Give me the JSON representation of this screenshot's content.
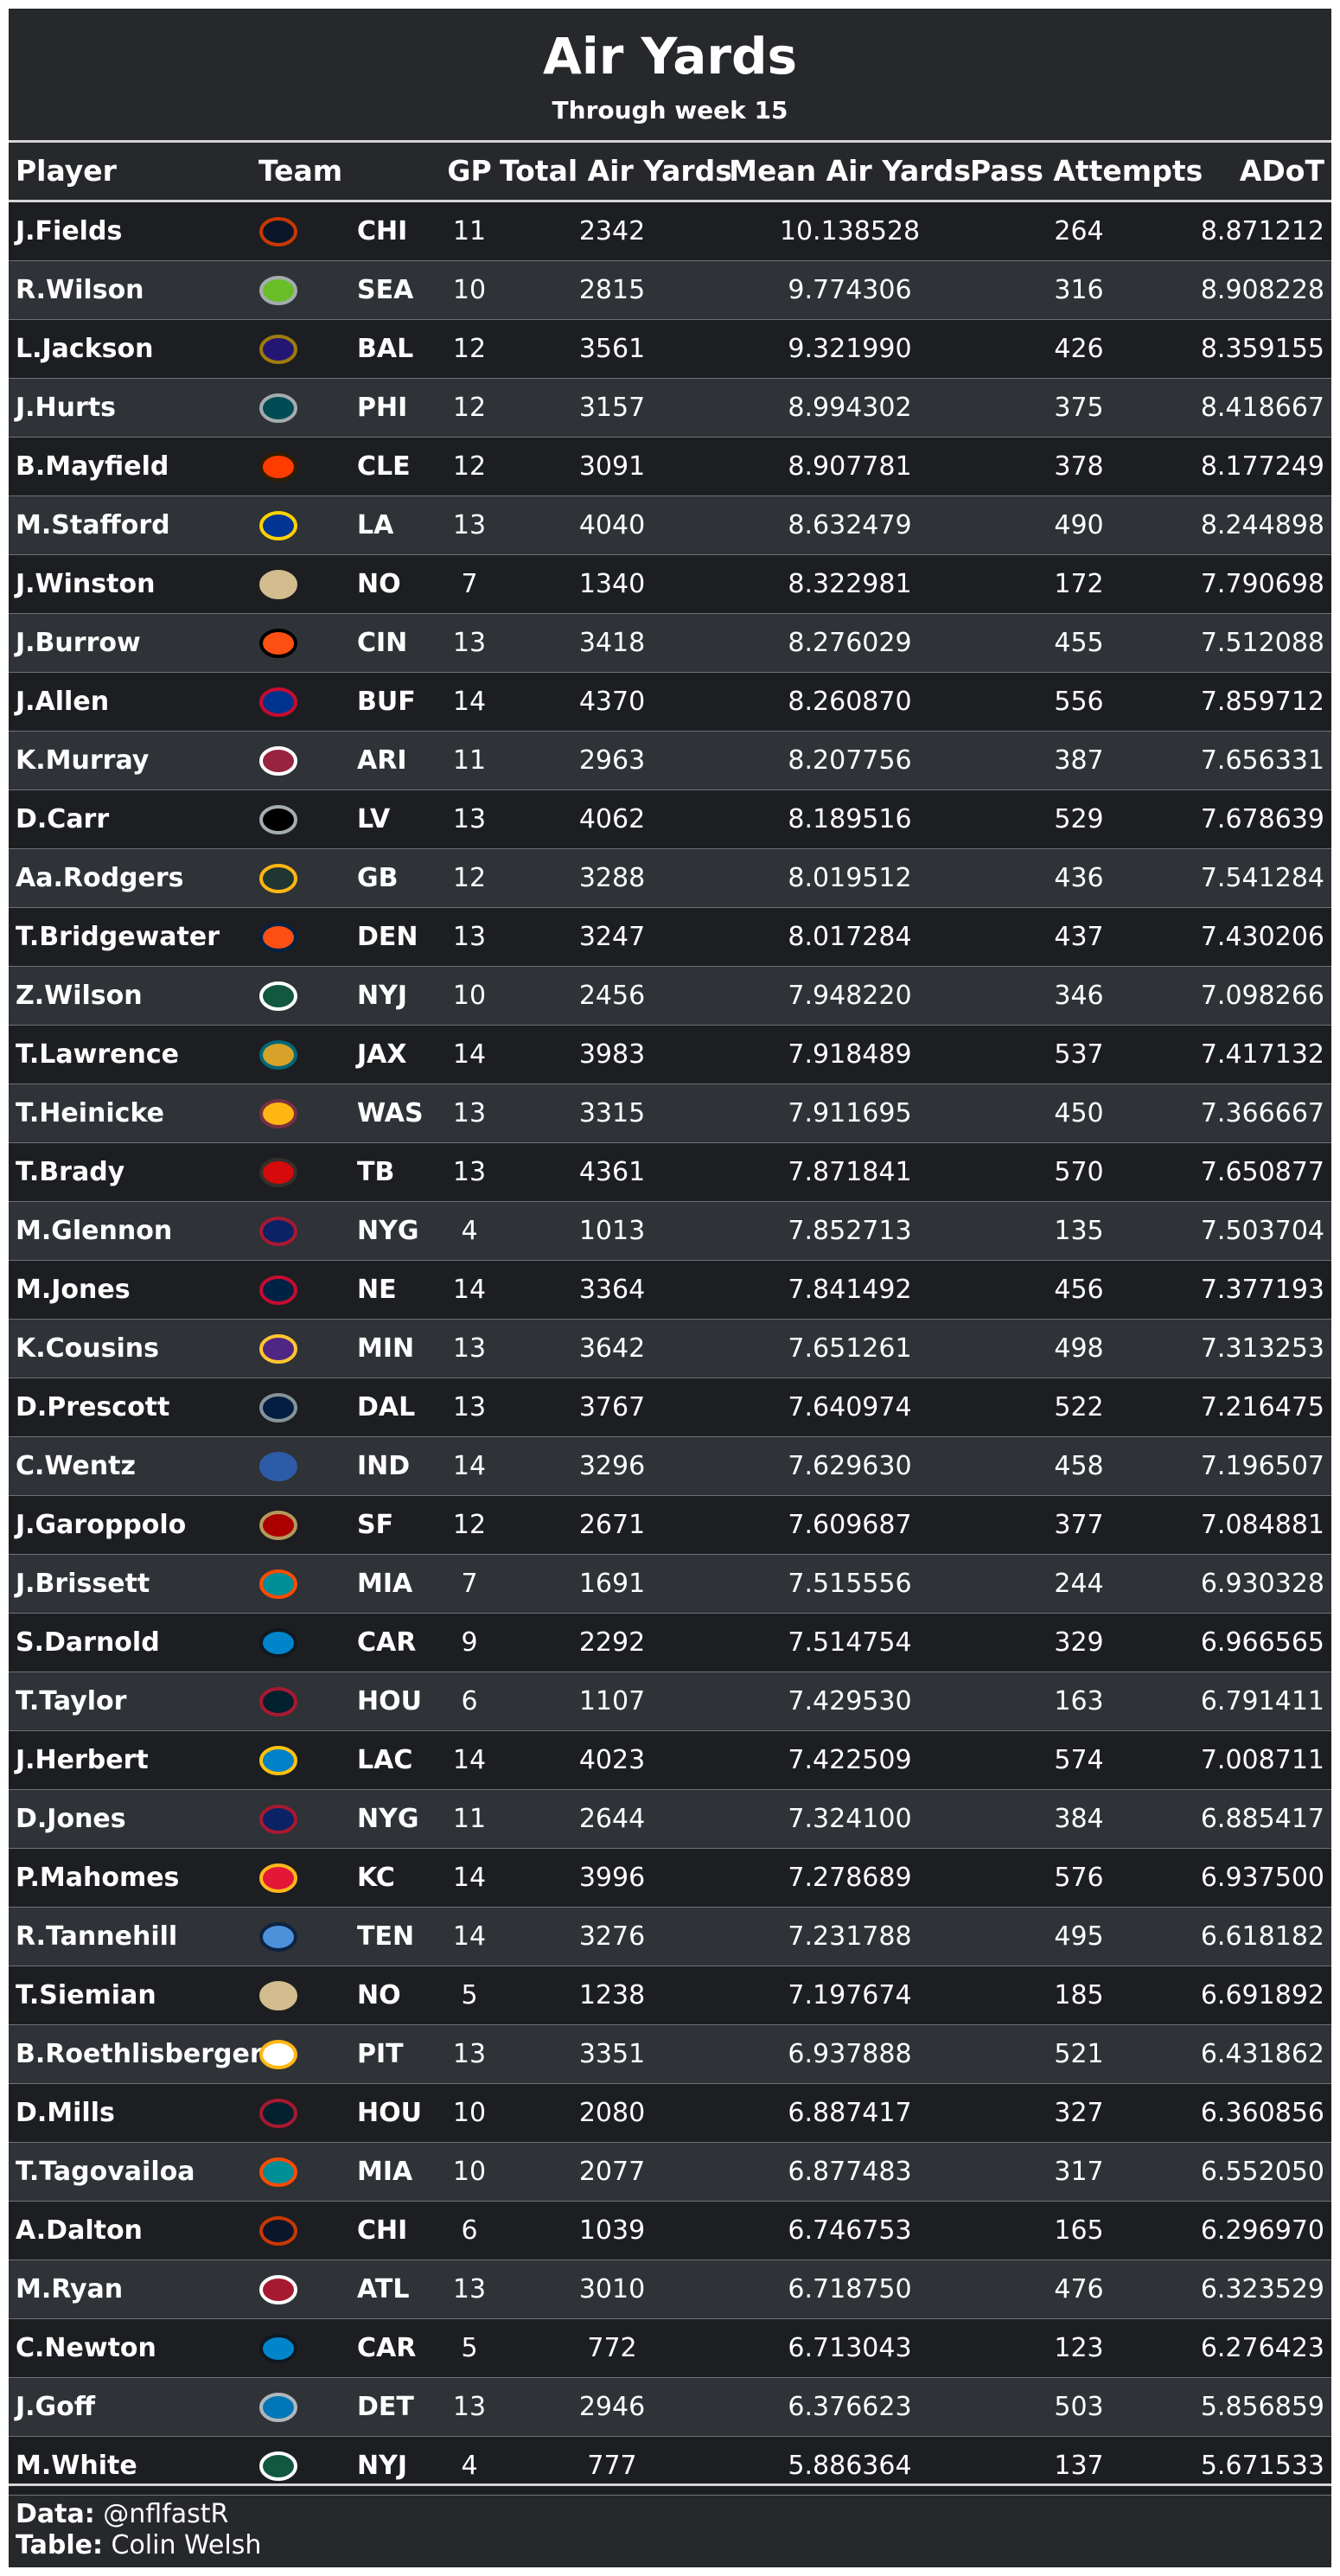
{
  "title": "Air Yards",
  "subtitle": "Through week 15",
  "columns": [
    "Player",
    "Team",
    "GP",
    "Total Air Yards",
    "Mean Air Yards",
    "Pass Attempts",
    "ADoT"
  ],
  "chart_data": {
    "type": "table",
    "rows": [
      {
        "player": "J.Fields",
        "logo": "bears-logo-icon",
        "colors": [
          "#0b162a",
          "#c83803"
        ],
        "team": "CHI",
        "gp": "11",
        "total": "2342",
        "mean": "10.138528",
        "attempts": "264",
        "adot": "8.871212"
      },
      {
        "player": "R.Wilson",
        "logo": "seahawks-logo-icon",
        "colors": [
          "#69be28",
          "#a5acaf"
        ],
        "team": "SEA",
        "gp": "10",
        "total": "2815",
        "mean": "9.774306",
        "attempts": "316",
        "adot": "8.908228"
      },
      {
        "player": "L.Jackson",
        "logo": "ravens-logo-icon",
        "colors": [
          "#241773",
          "#9e7c0c"
        ],
        "team": "BAL",
        "gp": "12",
        "total": "3561",
        "mean": "9.321990",
        "attempts": "426",
        "adot": "8.359155"
      },
      {
        "player": "J.Hurts",
        "logo": "eagles-logo-icon",
        "colors": [
          "#004c54",
          "#a5acaf"
        ],
        "team": "PHI",
        "gp": "12",
        "total": "3157",
        "mean": "8.994302",
        "attempts": "375",
        "adot": "8.418667"
      },
      {
        "player": "B.Mayfield",
        "logo": "browns-logo-icon",
        "colors": [
          "#ff3c00",
          "#311d00"
        ],
        "team": "CLE",
        "gp": "12",
        "total": "3091",
        "mean": "8.907781",
        "attempts": "378",
        "adot": "8.177249"
      },
      {
        "player": "M.Stafford",
        "logo": "rams-logo-icon",
        "colors": [
          "#003594",
          "#ffd100"
        ],
        "team": "LA",
        "gp": "13",
        "total": "4040",
        "mean": "8.632479",
        "attempts": "490",
        "adot": "8.244898"
      },
      {
        "player": "J.Winston",
        "logo": "saints-logo-icon",
        "colors": [
          "#d3bc8d",
          "#d3bc8d"
        ],
        "team": "NO",
        "gp": "7",
        "total": "1340",
        "mean": "8.322981",
        "attempts": "172",
        "adot": "7.790698"
      },
      {
        "player": "J.Burrow",
        "logo": "bengals-logo-icon",
        "colors": [
          "#fb4f14",
          "#000000"
        ],
        "team": "CIN",
        "gp": "13",
        "total": "3418",
        "mean": "8.276029",
        "attempts": "455",
        "adot": "7.512088"
      },
      {
        "player": "J.Allen",
        "logo": "bills-logo-icon",
        "colors": [
          "#00338d",
          "#c60c30"
        ],
        "team": "BUF",
        "gp": "14",
        "total": "4370",
        "mean": "8.260870",
        "attempts": "556",
        "adot": "7.859712"
      },
      {
        "player": "K.Murray",
        "logo": "cardinals-logo-icon",
        "colors": [
          "#97233f",
          "#ffffff"
        ],
        "team": "ARI",
        "gp": "11",
        "total": "2963",
        "mean": "8.207756",
        "attempts": "387",
        "adot": "7.656331"
      },
      {
        "player": "D.Carr",
        "logo": "raiders-logo-icon",
        "colors": [
          "#000000",
          "#a5acaf"
        ],
        "team": "LV",
        "gp": "13",
        "total": "4062",
        "mean": "8.189516",
        "attempts": "529",
        "adot": "7.678639"
      },
      {
        "player": "Aa.Rodgers",
        "logo": "packers-logo-icon",
        "colors": [
          "#203731",
          "#ffb612"
        ],
        "team": "GB",
        "gp": "12",
        "total": "3288",
        "mean": "8.019512",
        "attempts": "436",
        "adot": "7.541284"
      },
      {
        "player": "T.Bridgewater",
        "logo": "broncos-logo-icon",
        "colors": [
          "#fb4f14",
          "#002244"
        ],
        "team": "DEN",
        "gp": "13",
        "total": "3247",
        "mean": "8.017284",
        "attempts": "437",
        "adot": "7.430206"
      },
      {
        "player": "Z.Wilson",
        "logo": "jets-logo-icon",
        "colors": [
          "#125740",
          "#ffffff"
        ],
        "team": "NYJ",
        "gp": "10",
        "total": "2456",
        "mean": "7.948220",
        "attempts": "346",
        "adot": "7.098266"
      },
      {
        "player": "T.Lawrence",
        "logo": "jaguars-logo-icon",
        "colors": [
          "#d7a22a",
          "#006778"
        ],
        "team": "JAX",
        "gp": "14",
        "total": "3983",
        "mean": "7.918489",
        "attempts": "537",
        "adot": "7.417132"
      },
      {
        "player": "T.Heinicke",
        "logo": "washington-logo-icon",
        "colors": [
          "#ffb612",
          "#773141"
        ],
        "team": "WAS",
        "gp": "13",
        "total": "3315",
        "mean": "7.911695",
        "attempts": "450",
        "adot": "7.366667"
      },
      {
        "player": "T.Brady",
        "logo": "buccaneers-logo-icon",
        "colors": [
          "#d50a0a",
          "#34302b"
        ],
        "team": "TB",
        "gp": "13",
        "total": "4361",
        "mean": "7.871841",
        "attempts": "570",
        "adot": "7.650877"
      },
      {
        "player": "M.Glennon",
        "logo": "giants-logo-icon",
        "colors": [
          "#0b2265",
          "#a71930"
        ],
        "team": "NYG",
        "gp": "4",
        "total": "1013",
        "mean": "7.852713",
        "attempts": "135",
        "adot": "7.503704"
      },
      {
        "player": "M.Jones",
        "logo": "patriots-logo-icon",
        "colors": [
          "#002244",
          "#c60c30"
        ],
        "team": "NE",
        "gp": "14",
        "total": "3364",
        "mean": "7.841492",
        "attempts": "456",
        "adot": "7.377193"
      },
      {
        "player": "K.Cousins",
        "logo": "vikings-logo-icon",
        "colors": [
          "#4f2683",
          "#ffc62f"
        ],
        "team": "MIN",
        "gp": "13",
        "total": "3642",
        "mean": "7.651261",
        "attempts": "498",
        "adot": "7.313253"
      },
      {
        "player": "D.Prescott",
        "logo": "cowboys-logo-icon",
        "colors": [
          "#041e42",
          "#869397"
        ],
        "team": "DAL",
        "gp": "13",
        "total": "3767",
        "mean": "7.640974",
        "attempts": "522",
        "adot": "7.216475"
      },
      {
        "player": "C.Wentz",
        "logo": "colts-logo-icon",
        "colors": [
          "#2d5ba8",
          "#2d5ba8"
        ],
        "team": "IND",
        "gp": "14",
        "total": "3296",
        "mean": "7.629630",
        "attempts": "458",
        "adot": "7.196507"
      },
      {
        "player": "J.Garoppolo",
        "logo": "49ers-logo-icon",
        "colors": [
          "#aa0000",
          "#b3995d"
        ],
        "team": "SF",
        "gp": "12",
        "total": "2671",
        "mean": "7.609687",
        "attempts": "377",
        "adot": "7.084881"
      },
      {
        "player": "J.Brissett",
        "logo": "dolphins-logo-icon",
        "colors": [
          "#008e97",
          "#fc4c02"
        ],
        "team": "MIA",
        "gp": "7",
        "total": "1691",
        "mean": "7.515556",
        "attempts": "244",
        "adot": "6.930328"
      },
      {
        "player": "S.Darnold",
        "logo": "panthers-logo-icon",
        "colors": [
          "#0085ca",
          "#101820"
        ],
        "team": "CAR",
        "gp": "9",
        "total": "2292",
        "mean": "7.514754",
        "attempts": "329",
        "adot": "6.966565"
      },
      {
        "player": "T.Taylor",
        "logo": "texans-logo-icon",
        "colors": [
          "#03202f",
          "#a71930"
        ],
        "team": "HOU",
        "gp": "6",
        "total": "1107",
        "mean": "7.429530",
        "attempts": "163",
        "adot": "6.791411"
      },
      {
        "player": "J.Herbert",
        "logo": "chargers-logo-icon",
        "colors": [
          "#0080c6",
          "#ffc20e"
        ],
        "team": "LAC",
        "gp": "14",
        "total": "4023",
        "mean": "7.422509",
        "attempts": "574",
        "adot": "7.008711"
      },
      {
        "player": "D.Jones",
        "logo": "giants-logo-icon",
        "colors": [
          "#0b2265",
          "#a71930"
        ],
        "team": "NYG",
        "gp": "11",
        "total": "2644",
        "mean": "7.324100",
        "attempts": "384",
        "adot": "6.885417"
      },
      {
        "player": "P.Mahomes",
        "logo": "chiefs-logo-icon",
        "colors": [
          "#e31837",
          "#ffb81c"
        ],
        "team": "KC",
        "gp": "14",
        "total": "3996",
        "mean": "7.278689",
        "attempts": "576",
        "adot": "6.937500"
      },
      {
        "player": "R.Tannehill",
        "logo": "titans-logo-icon",
        "colors": [
          "#4b92db",
          "#0c2340"
        ],
        "team": "TEN",
        "gp": "14",
        "total": "3276",
        "mean": "7.231788",
        "attempts": "495",
        "adot": "6.618182"
      },
      {
        "player": "T.Siemian",
        "logo": "saints-logo-icon",
        "colors": [
          "#d3bc8d",
          "#d3bc8d"
        ],
        "team": "NO",
        "gp": "5",
        "total": "1238",
        "mean": "7.197674",
        "attempts": "185",
        "adot": "6.691892"
      },
      {
        "player": "B.Roethlisberger",
        "logo": "steelers-logo-icon",
        "colors": [
          "#ffffff",
          "#ffb612"
        ],
        "team": "PIT",
        "gp": "13",
        "total": "3351",
        "mean": "6.937888",
        "attempts": "521",
        "adot": "6.431862"
      },
      {
        "player": "D.Mills",
        "logo": "texans-logo-icon",
        "colors": [
          "#03202f",
          "#a71930"
        ],
        "team": "HOU",
        "gp": "10",
        "total": "2080",
        "mean": "6.887417",
        "attempts": "327",
        "adot": "6.360856"
      },
      {
        "player": "T.Tagovailoa",
        "logo": "dolphins-logo-icon",
        "colors": [
          "#008e97",
          "#fc4c02"
        ],
        "team": "MIA",
        "gp": "10",
        "total": "2077",
        "mean": "6.877483",
        "attempts": "317",
        "adot": "6.552050"
      },
      {
        "player": "A.Dalton",
        "logo": "bears-logo-icon",
        "colors": [
          "#0b162a",
          "#c83803"
        ],
        "team": "CHI",
        "gp": "6",
        "total": "1039",
        "mean": "6.746753",
        "attempts": "165",
        "adot": "6.296970"
      },
      {
        "player": "M.Ryan",
        "logo": "falcons-logo-icon",
        "colors": [
          "#a71930",
          "#ffffff"
        ],
        "team": "ATL",
        "gp": "13",
        "total": "3010",
        "mean": "6.718750",
        "attempts": "476",
        "adot": "6.323529"
      },
      {
        "player": "C.Newton",
        "logo": "panthers-logo-icon",
        "colors": [
          "#0085ca",
          "#101820"
        ],
        "team": "CAR",
        "gp": "5",
        "total": "772",
        "mean": "6.713043",
        "attempts": "123",
        "adot": "6.276423"
      },
      {
        "player": "J.Goff",
        "logo": "lions-logo-icon",
        "colors": [
          "#0076b6",
          "#b0b7bc"
        ],
        "team": "DET",
        "gp": "13",
        "total": "2946",
        "mean": "6.376623",
        "attempts": "503",
        "adot": "5.856859"
      },
      {
        "player": "M.White",
        "logo": "jets-logo-icon",
        "colors": [
          "#125740",
          "#ffffff"
        ],
        "team": "NYJ",
        "gp": "4",
        "total": "777",
        "mean": "5.886364",
        "attempts": "137",
        "adot": "5.671533"
      }
    ]
  },
  "footer": {
    "data_label": "Data:",
    "data_value": "@nflfastR",
    "table_label": "Table:",
    "table_value": "Colin Welsh"
  }
}
